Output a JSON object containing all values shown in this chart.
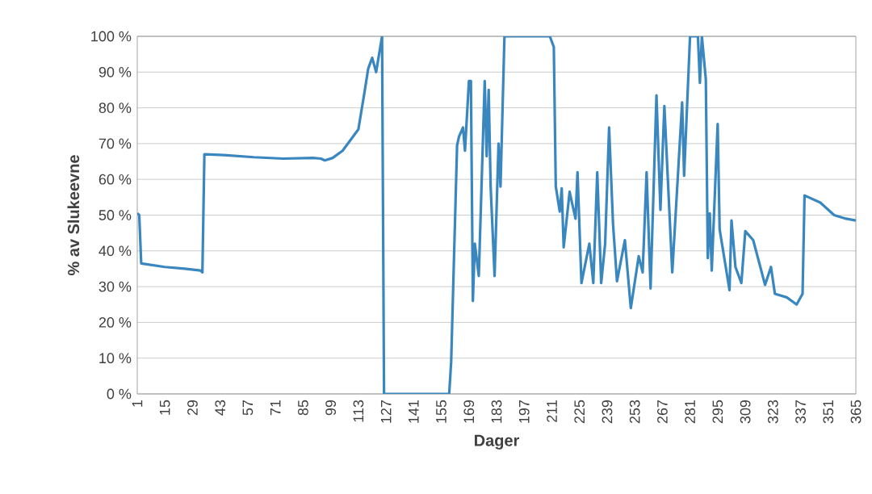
{
  "chart_data": {
    "type": "line",
    "xlabel": "Dager",
    "ylabel": "% av Slukeevne",
    "color": "#3a87c0",
    "grid": "y",
    "x": [
      1,
      2,
      3,
      15,
      25,
      33,
      34,
      35,
      45,
      60,
      75,
      90,
      94,
      96,
      100,
      105,
      109,
      113,
      116,
      118,
      120,
      122,
      125,
      126,
      140,
      159,
      160,
      163,
      164,
      166,
      167,
      169,
      170,
      171,
      172,
      174,
      177,
      178,
      179,
      180,
      182,
      184,
      185,
      187,
      210,
      212,
      213,
      215,
      216,
      217,
      220,
      223,
      224,
      226,
      230,
      232,
      234,
      236,
      238,
      240,
      242,
      244,
      248,
      251,
      255,
      257,
      259,
      261,
      264,
      266,
      268,
      272,
      277,
      278,
      281,
      285,
      286,
      287,
      289,
      290,
      291,
      292,
      295,
      296,
      301,
      302,
      304,
      307,
      309,
      313,
      319,
      322,
      324,
      330,
      335,
      338,
      339,
      347,
      354,
      360,
      365
    ],
    "values": [
      50.5,
      50,
      36.5,
      35.5,
      35,
      34.5,
      34,
      67,
      66.8,
      66.2,
      65.8,
      66,
      65.8,
      65.3,
      66,
      68,
      71,
      74,
      84,
      91,
      94,
      90,
      100,
      0,
      0,
      0,
      9,
      69.5,
      72,
      74.5,
      68,
      87.5,
      87.5,
      26,
      42,
      33,
      87.5,
      66.5,
      85,
      58,
      33,
      70,
      58,
      100,
      100,
      97,
      58,
      51,
      57.5,
      41,
      56.5,
      49,
      62,
      31,
      42,
      31,
      62,
      31,
      42,
      74.5,
      47.5,
      31.5,
      43,
      24,
      38.5,
      34,
      62,
      29.5,
      83.5,
      51.5,
      80.5,
      34,
      81.5,
      61,
      100,
      100,
      87,
      100,
      88,
      38,
      50.5,
      34.5,
      75.5,
      46,
      29,
      48.5,
      35.5,
      31,
      45.5,
      43,
      30.5,
      35.5,
      28,
      27,
      25,
      28,
      55.5,
      53.5,
      50,
      49,
      48.5
    ],
    "xlim": [
      1,
      365
    ],
    "ylim": [
      0,
      100
    ],
    "xticks": [
      1,
      15,
      29,
      43,
      57,
      71,
      85,
      99,
      113,
      127,
      141,
      155,
      169,
      183,
      197,
      211,
      225,
      239,
      253,
      267,
      281,
      295,
      309,
      323,
      337,
      351,
      365
    ],
    "yticks": [
      {
        "value": 0,
        "label": "0 %"
      },
      {
        "value": 10,
        "label": "10 %"
      },
      {
        "value": 20,
        "label": "20 %"
      },
      {
        "value": 30,
        "label": "30 %"
      },
      {
        "value": 40,
        "label": "40 %"
      },
      {
        "value": 50,
        "label": "50 %"
      },
      {
        "value": 60,
        "label": "60 %"
      },
      {
        "value": 70,
        "label": "70 %"
      },
      {
        "value": 80,
        "label": "80 %"
      },
      {
        "value": 90,
        "label": "90 %"
      },
      {
        "value": 100,
        "label": "100 %"
      }
    ]
  }
}
